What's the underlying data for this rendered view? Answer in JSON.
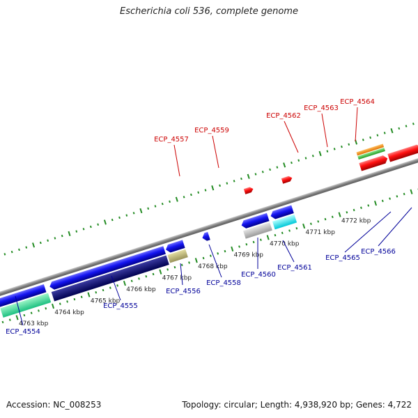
{
  "title": "Escherichia coli 536, complete genome",
  "accession": "Accession: NC_008253",
  "summary": "Topology: circular; Length: 4,938,920 bp; Genes: 4,722",
  "kbp_labels": [
    "4763 kbp",
    "4764 kbp",
    "4765 kbp",
    "4766 kbp",
    "4767 kbp",
    "4768 kbp",
    "4769 kbp",
    "4770 kbp",
    "4771 kbp",
    "4772 kbp"
  ],
  "forward_gene_labels": [
    "ECP_4557",
    "ECP_4559",
    "ECP_4562",
    "ECP_4563",
    "ECP_4564"
  ],
  "reverse_gene_labels": [
    "ECP_4554",
    "ECP_4555",
    "ECP_4556",
    "ECP_4558",
    "ECP_4560",
    "ECP_4561",
    "ECP_4565",
    "ECP_4566"
  ],
  "colors": {
    "forward_gene": "#ff0000",
    "reverse_gene": "#0000ee",
    "tick": "#228b22",
    "backbone": "#888888",
    "forward_label": "#cc0000",
    "reverse_label": "#000099"
  }
}
